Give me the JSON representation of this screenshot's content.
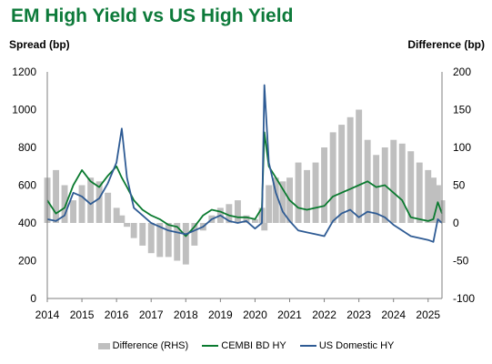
{
  "page_title": "EM High Yield vs US High Yield",
  "chart_data": {
    "type": "line",
    "title": "EM High Yield vs US High Yield",
    "ylabel": "Spread (bp)",
    "y2label": "Difference (bp)",
    "ylim": [
      0,
      1200
    ],
    "y2lim": [
      -100,
      200
    ],
    "yticks": [
      0,
      200,
      400,
      600,
      800,
      1000,
      1200
    ],
    "y2ticks": [
      -100,
      -50,
      0,
      50,
      100,
      150,
      200
    ],
    "xlim": [
      2014,
      2025.4
    ],
    "xticks": [
      2014,
      2015,
      2016,
      2017,
      2018,
      2019,
      2020,
      2021,
      2022,
      2023,
      2024,
      2025
    ],
    "grid": false,
    "legend_position": "bottom",
    "x": [
      2014.0,
      2014.25,
      2014.5,
      2014.75,
      2015.0,
      2015.25,
      2015.5,
      2015.75,
      2016.0,
      2016.15,
      2016.3,
      2016.5,
      2016.75,
      2017.0,
      2017.25,
      2017.5,
      2017.75,
      2018.0,
      2018.25,
      2018.5,
      2018.75,
      2019.0,
      2019.25,
      2019.5,
      2019.75,
      2020.0,
      2020.2,
      2020.27,
      2020.4,
      2020.6,
      2020.8,
      2021.0,
      2021.25,
      2021.5,
      2021.75,
      2022.0,
      2022.25,
      2022.5,
      2022.75,
      2023.0,
      2023.25,
      2023.5,
      2023.75,
      2024.0,
      2024.25,
      2024.5,
      2024.75,
      2025.0,
      2025.15,
      2025.28,
      2025.4
    ],
    "series": [
      {
        "name": "Difference (RHS)",
        "axis": "right",
        "kind": "bar",
        "color": "#bfbfbf",
        "values": [
          60,
          70,
          50,
          30,
          50,
          60,
          55,
          40,
          20,
          10,
          -5,
          -20,
          -30,
          -40,
          -45,
          -45,
          -50,
          -55,
          -30,
          -10,
          10,
          20,
          25,
          30,
          10,
          5,
          20,
          -10,
          50,
          60,
          55,
          60,
          80,
          70,
          80,
          100,
          120,
          130,
          140,
          150,
          110,
          90,
          100,
          110,
          105,
          95,
          80,
          70,
          60,
          50,
          30
        ]
      },
      {
        "name": "CEMBI BD HY",
        "axis": "left",
        "kind": "line",
        "color": "#0a7a2f",
        "values": [
          520,
          450,
          480,
          600,
          680,
          620,
          590,
          650,
          700,
          640,
          590,
          520,
          470,
          440,
          420,
          390,
          380,
          330,
          380,
          440,
          470,
          460,
          440,
          430,
          430,
          420,
          480,
          880,
          700,
          640,
          580,
          520,
          480,
          470,
          480,
          490,
          540,
          560,
          580,
          600,
          620,
          590,
          600,
          560,
          520,
          430,
          420,
          410,
          420,
          510,
          450
        ]
      },
      {
        "name": "US Domestic HY",
        "axis": "left",
        "kind": "line",
        "color": "#2e5b94",
        "values": [
          420,
          410,
          440,
          560,
          540,
          500,
          530,
          610,
          720,
          900,
          640,
          480,
          440,
          400,
          380,
          360,
          350,
          340,
          360,
          380,
          420,
          440,
          410,
          400,
          410,
          370,
          400,
          1130,
          720,
          560,
          460,
          410,
          360,
          350,
          340,
          330,
          410,
          450,
          470,
          430,
          460,
          450,
          430,
          390,
          360,
          330,
          320,
          310,
          300,
          420,
          400
        ]
      }
    ]
  }
}
